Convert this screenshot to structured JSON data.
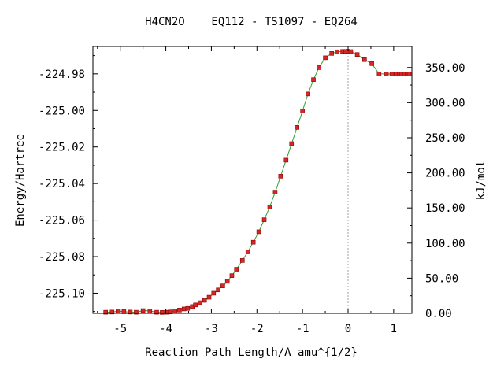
{
  "chart_data": {
    "type": "line",
    "title": "H4CN2O    EQ112 - TS1097 - EQ264",
    "xlabel": "Reaction Path Length/A amu^{1/2}",
    "ylabel": "Energy/Hartree",
    "ylabel_right": "kJ/mol",
    "xlim": [
      -5.6,
      1.4
    ],
    "ylim": [
      -225.111,
      -224.965
    ],
    "ylim_right": [
      0,
      380
    ],
    "x_ticks": [
      -5,
      -4,
      -3,
      -2,
      -1,
      0,
      1
    ],
    "x_tick_labels": [
      "-5",
      "-4",
      "-3",
      "-2",
      "-1",
      "0",
      "1"
    ],
    "y_ticks": [
      -225.1,
      -225.08,
      -225.06,
      -225.04,
      -225.02,
      -225.0,
      -224.98
    ],
    "y_tick_labels": [
      "-225.10",
      "-225.08",
      "-225.06",
      "-225.04",
      "-225.02",
      "-225.00",
      "-224.98"
    ],
    "y_right_ticks": [
      0,
      50,
      100,
      150,
      200,
      250,
      300,
      350
    ],
    "y_right_tick_labels": [
      "0.00",
      "50.00",
      "100.00",
      "150.00",
      "200.00",
      "250.00",
      "300.00",
      "350.00"
    ],
    "ts_marker_x": 0.0,
    "grid": false,
    "colors": {
      "curve": "#2ca02c",
      "marker_fill": "#d62728",
      "marker_edge": "#8b0000",
      "ts_line": "#a0a0a0"
    },
    "series": [
      {
        "x": [
          -5.32,
          -5.18,
          -5.05,
          -4.92,
          -4.78,
          -4.65,
          -4.5,
          -4.35,
          -4.2,
          -4.08,
          -3.98,
          -3.9,
          -3.8,
          -3.7,
          -3.6,
          -3.52,
          -3.42,
          -3.35,
          -3.25,
          -3.15,
          -3.05,
          -2.95,
          -2.85,
          -2.75,
          -2.65,
          -2.55,
          -2.45,
          -2.32,
          -2.2,
          -2.08,
          -1.96,
          -1.84,
          -1.72,
          -1.6,
          -1.48,
          -1.36,
          -1.24,
          -1.12,
          -1.0,
          -0.88,
          -0.76,
          -0.64,
          -0.5,
          -0.36,
          -0.24,
          -0.12,
          -0.05,
          0.0,
          0.06,
          0.2,
          0.36,
          0.52,
          0.68,
          0.84,
          0.96,
          1.05,
          1.12,
          1.18,
          1.24,
          1.3,
          1.34
        ],
        "y": [
          -225.1104,
          -225.1103,
          -225.1098,
          -225.1101,
          -225.1103,
          -225.1104,
          -225.1095,
          -225.1097,
          -225.1104,
          -225.1105,
          -225.1104,
          -225.1102,
          -225.1098,
          -225.1092,
          -225.1086,
          -225.1083,
          -225.1073,
          -225.1064,
          -225.1052,
          -225.1039,
          -225.1022,
          -225.1,
          -225.0982,
          -225.096,
          -225.0935,
          -225.0904,
          -225.0869,
          -225.0821,
          -225.0774,
          -225.0721,
          -225.0664,
          -225.0598,
          -225.0528,
          -225.0447,
          -225.036,
          -225.0272,
          -225.0182,
          -225.0093,
          -225.0003,
          -224.991,
          -224.9832,
          -224.9766,
          -224.9712,
          -224.9688,
          -224.9679,
          -224.9677,
          -224.9677,
          -224.9676,
          -224.9678,
          -224.9694,
          -224.9722,
          -224.9744,
          -224.98,
          -224.98,
          -224.9801,
          -224.9801,
          -224.9801,
          -224.9801,
          -224.9801,
          -224.9801,
          -224.9801
        ]
      }
    ]
  }
}
